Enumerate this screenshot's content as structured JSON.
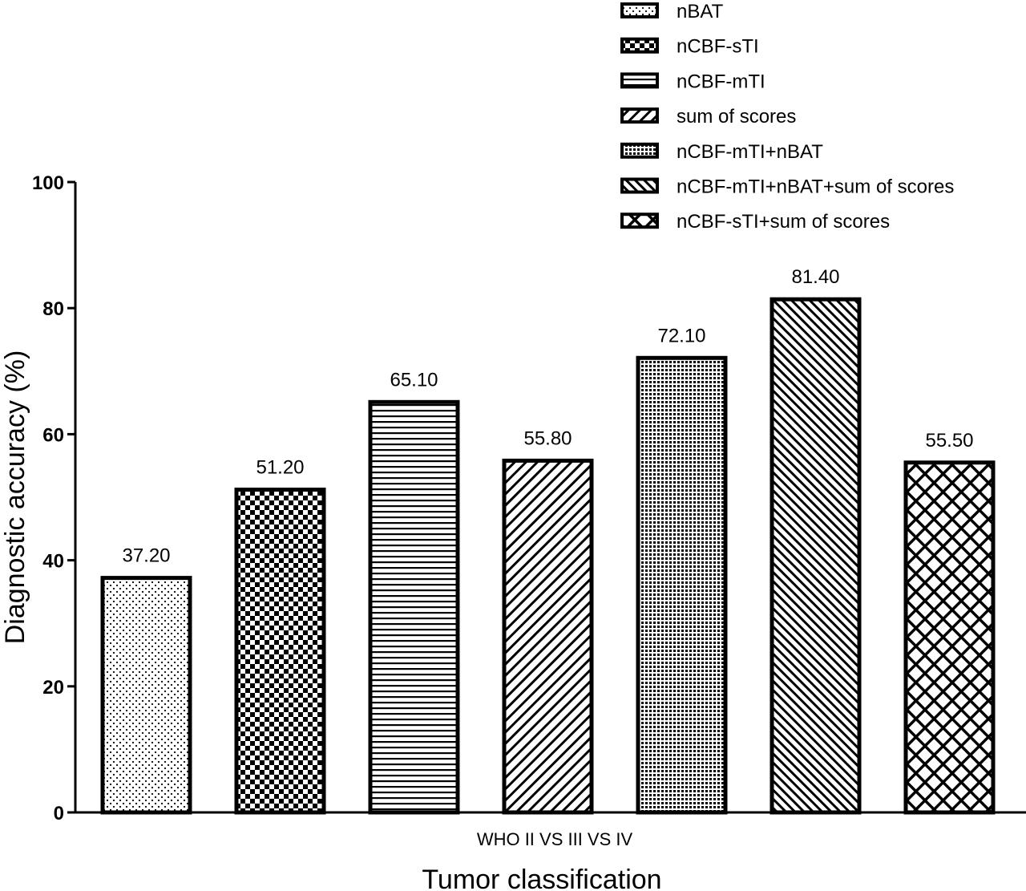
{
  "chart_data": {
    "type": "bar",
    "categories": [
      "WHO II VS III VS IV"
    ],
    "series": [
      {
        "name": "nBAT",
        "values": [
          37.2
        ],
        "label": "37.20",
        "pattern": "dots"
      },
      {
        "name": "nCBF-sTI",
        "values": [
          51.2
        ],
        "label": "51.20",
        "pattern": "checker"
      },
      {
        "name": "nCBF-mTI",
        "values": [
          65.1
        ],
        "label": "65.10",
        "pattern": "hlines"
      },
      {
        "name": "sum of scores",
        "values": [
          55.8
        ],
        "label": "55.80",
        "pattern": "diag-right"
      },
      {
        "name": "nCBF-mTI+nBAT",
        "values": [
          72.1
        ],
        "label": "72.10",
        "pattern": "fine-grid"
      },
      {
        "name": "nCBF-mTI+nBAT+sum of scores",
        "values": [
          81.4
        ],
        "label": "81.40",
        "pattern": "diag-left"
      },
      {
        "name": "nCBF-sTI+sum of scores",
        "values": [
          55.5
        ],
        "label": "55.50",
        "pattern": "lattice"
      }
    ],
    "xlabel": "Tumor classification",
    "ylabel": "Diagnostic accuracy  (%)",
    "ylim": [
      0,
      100
    ],
    "yticks": [
      "0",
      "20",
      "40",
      "60",
      "80",
      "100"
    ],
    "grid": false,
    "legend_position": "top-right",
    "colors": {
      "stroke": "#000000",
      "fill": "#ffffff"
    }
  }
}
